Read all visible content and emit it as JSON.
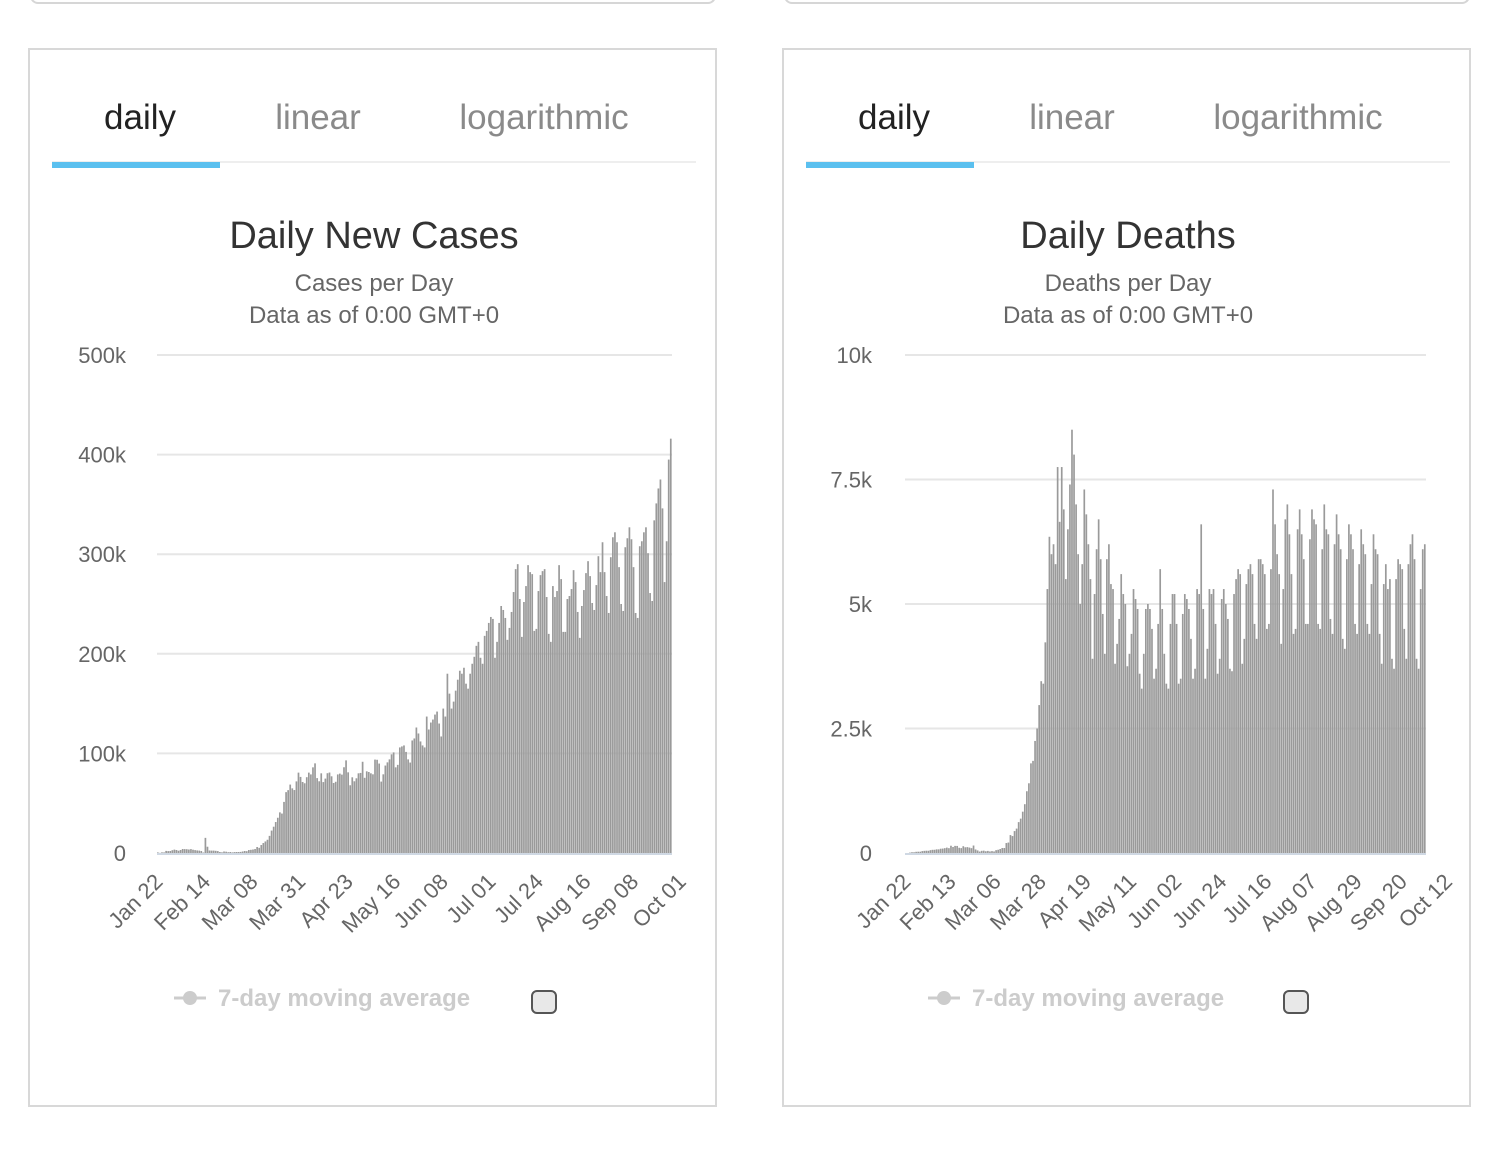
{
  "panels": [
    {
      "tabs": [
        "daily",
        "linear",
        "logarithmic"
      ],
      "active_tab": "daily",
      "checkbox_checked": false,
      "colors": {
        "bars": "#9a9a9a",
        "tab_indicator": "#5bc0ef",
        "legend": "#cccccc"
      }
    },
    {
      "tabs": [
        "daily",
        "linear",
        "logarithmic"
      ],
      "active_tab": "daily",
      "checkbox_checked": false,
      "colors": {
        "bars": "#9a9a9a",
        "tab_indicator": "#5bc0ef",
        "legend": "#cccccc"
      }
    }
  ],
  "chart_data": [
    {
      "type": "bar",
      "title": "Daily New Cases",
      "subtitle": [
        "Cases per Day",
        "Data as of 0:00 GMT+0"
      ],
      "ylim": [
        0,
        500000
      ],
      "yticks": [
        0,
        100000,
        200000,
        300000,
        400000,
        500000
      ],
      "ytick_labels": [
        "0",
        "100k",
        "200k",
        "300k",
        "400k",
        "500k"
      ],
      "x_start": "Jan 22",
      "x_end": "Oct 21",
      "x_tick_labels": [
        "Jan 22",
        "Feb 14",
        "Mar 08",
        "Mar 31",
        "Apr 23",
        "May 16",
        "Jun 08",
        "Jul 01",
        "Jul 24",
        "Aug 16",
        "Sep 08",
        "Oct 01"
      ],
      "grid": true,
      "legend": [
        {
          "label": "7-day moving average",
          "visible": false
        }
      ],
      "legend_position": "bottom",
      "series": [
        {
          "name": "Cases per Day",
          "values": [
            580,
            120,
            680,
            600,
            2100,
            1900,
            2000,
            2800,
            3400,
            3000,
            2300,
            3000,
            4000,
            3900,
            3800,
            3500,
            3900,
            3300,
            2900,
            2600,
            2400,
            2000,
            500,
            15200,
            6300,
            2500,
            2400,
            2400,
            2200,
            1900,
            1000,
            700,
            1500,
            1300,
            800,
            1000,
            600,
            900,
            1000,
            1000,
            1100,
            1500,
            2000,
            1800,
            3000,
            3200,
            3500,
            4000,
            6000,
            5200,
            8000,
            10000,
            11600,
            13300,
            17200,
            22500,
            26400,
            31100,
            35400,
            40800,
            39600,
            51300,
            61100,
            63100,
            68700,
            64900,
            63200,
            71900,
            80700,
            76400,
            71300,
            70000,
            76100,
            80700,
            78900,
            86000,
            90000,
            75200,
            72000,
            80000,
            71200,
            74700,
            80100,
            80800,
            77000,
            70300,
            71500,
            78900,
            79700,
            78700,
            86100,
            93000,
            81000,
            68000,
            76000,
            72000,
            75000,
            80000,
            80400,
            91600,
            75500,
            82000,
            81300,
            80000,
            79000,
            93800,
            93600,
            89800,
            71700,
            79000,
            87800,
            91000,
            94000,
            99000,
            101000,
            86000,
            88500,
            106000,
            107000,
            108000,
            101500,
            94000,
            90800,
            113000,
            115000,
            126000,
            120000,
            112000,
            108000,
            106000,
            137000,
            124000,
            131000,
            134000,
            139000,
            142000,
            130000,
            117000,
            145000,
            137000,
            180000,
            160000,
            145000,
            152000,
            163000,
            174000,
            183000,
            180000,
            186000,
            170000,
            165000,
            180000,
            190000,
            197000,
            208000,
            212000,
            196000,
            190000,
            218000,
            223000,
            231000,
            237000,
            235000,
            196000,
            212000,
            231000,
            248000,
            244000,
            236000,
            214000,
            226000,
            242000,
            262000,
            285000,
            290000,
            255000,
            217000,
            252000,
            268000,
            289000,
            282000,
            280000,
            223000,
            225000,
            263000,
            279000,
            283000,
            285000,
            257000,
            220000,
            212000,
            268000,
            257000,
            263000,
            289000,
            275000,
            222000,
            222000,
            255000,
            258000,
            265000,
            284000,
            272000,
            242000,
            216000,
            248000,
            264000,
            281000,
            293000,
            278000,
            251000,
            244000,
            269000,
            298000,
            282000,
            312000,
            282000,
            258000,
            241000,
            297000,
            317000,
            322000,
            312000,
            287000,
            250000,
            243000,
            307000,
            316000,
            327000,
            315000,
            287000,
            241000,
            236000,
            308000,
            313000,
            322000,
            327000,
            301000,
            261000,
            253000,
            334000,
            351000,
            366000,
            375000,
            346000,
            272000,
            313000,
            395000,
            416000
          ]
        }
      ]
    },
    {
      "type": "bar",
      "title": "Daily Deaths",
      "subtitle": [
        "Deaths per Day",
        "Data as of 0:00 GMT+0"
      ],
      "ylim": [
        0,
        10000
      ],
      "yticks": [
        0,
        2500,
        5000,
        7500,
        10000
      ],
      "ytick_labels": [
        "0",
        "2.5k",
        "5k",
        "7.5k",
        "10k"
      ],
      "x_start": "Jan 22",
      "x_end": "Oct 21",
      "x_tick_labels": [
        "Jan 22",
        "Feb 13",
        "Mar 06",
        "Mar 28",
        "Apr 19",
        "May 11",
        "Jun 02",
        "Jun 24",
        "Jul 16",
        "Aug 07",
        "Aug 29",
        "Sep 20",
        "Oct 12"
      ],
      "grid": true,
      "legend": [
        {
          "label": "7-day moving average",
          "visible": false
        }
      ],
      "legend_position": "bottom",
      "series": [
        {
          "name": "Deaths per Day",
          "values": [
            0,
            0,
            8,
            16,
            15,
            24,
            26,
            26,
            38,
            43,
            46,
            45,
            57,
            64,
            65,
            73,
            73,
            86,
            89,
            97,
            108,
            97,
            146,
            121,
            143,
            142,
            105,
            98,
            136,
            115,
            118,
            109,
            97,
            150,
            71,
            52,
            29,
            44,
            47,
            35,
            42,
            31,
            38,
            31,
            57,
            65,
            80,
            100,
            100,
            200,
            210,
            360,
            340,
            440,
            490,
            620,
            690,
            830,
            980,
            1240,
            1400,
            1800,
            1850,
            2250,
            2500,
            2970,
            3450,
            3400,
            4230,
            5300,
            6350,
            6000,
            6200,
            5800,
            7750,
            6650,
            7750,
            6900,
            5500,
            6500,
            7400,
            8500,
            8000,
            7000,
            6000,
            5000,
            5800,
            7300,
            6800,
            6200,
            5500,
            3900,
            5200,
            6100,
            6700,
            5900,
            4800,
            4000,
            5900,
            6200,
            5400,
            5300,
            3800,
            4200,
            4700,
            5600,
            5200,
            5000,
            3750,
            4000,
            4400,
            5300,
            5100,
            4900,
            3600,
            3300,
            4000,
            4900,
            5000,
            4900,
            4500,
            3500,
            3700,
            4600,
            5700,
            4900,
            4000,
            3400,
            3300,
            4600,
            5200,
            5200,
            4600,
            3400,
            3500,
            4800,
            5200,
            5100,
            4900,
            4300,
            3500,
            3700,
            5300,
            5200,
            6600,
            4900,
            3500,
            4100,
            5300,
            5200,
            5300,
            4600,
            3600,
            3900,
            5100,
            5300,
            5000,
            4700,
            3700,
            3650,
            5200,
            5500,
            5700,
            5600,
            3800,
            4300,
            5400,
            5700,
            5800,
            5600,
            4600,
            4300,
            5900,
            5900,
            5800,
            5600,
            4500,
            4600,
            5700,
            7300,
            6600,
            6000,
            5600,
            4200,
            5300,
            6700,
            7000,
            6400,
            5600,
            4400,
            4500,
            6500,
            6900,
            6400,
            5900,
            4600,
            4600,
            6300,
            6900,
            6700,
            6600,
            4600,
            4500,
            6100,
            7000,
            6500,
            6400,
            4700,
            4400,
            6200,
            6800,
            6400,
            6100,
            4300,
            4100,
            5900,
            6600,
            6400,
            6100,
            4600,
            4400,
            5800,
            6500,
            6200,
            6000,
            4600,
            4400,
            5400,
            6400,
            6100,
            6000,
            4400,
            3800,
            5400,
            5800,
            5300,
            5500,
            3900,
            3700,
            5500,
            5900,
            5800,
            5700,
            4500,
            3900,
            5800,
            6200,
            6400,
            5900,
            3900,
            3700,
            5300,
            6100,
            6200
          ]
        }
      ]
    }
  ]
}
